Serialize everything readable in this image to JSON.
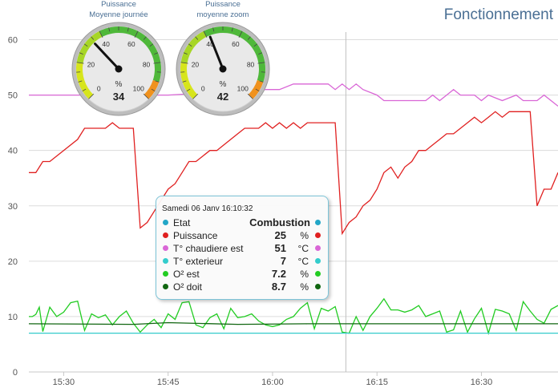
{
  "page_title": "Fonctionnement",
  "gauges": [
    {
      "title_line1": "Puissance",
      "title_line2": "Moyenne journée",
      "value": 34,
      "unit": "%",
      "min": 0,
      "max": 100,
      "ticks": [
        "0",
        "20",
        "40",
        "60",
        "80",
        "100"
      ]
    },
    {
      "title_line1": "Puissance",
      "title_line2": "moyenne zoom",
      "value": 42,
      "unit": "%",
      "min": 0,
      "max": 100,
      "ticks": [
        "0",
        "20",
        "40",
        "60",
        "80",
        "100"
      ]
    }
  ],
  "tooltip": {
    "timestamp": "Samedi 06 Janv 16:10:32",
    "rows": [
      {
        "label": "Etat",
        "value": "Combustion",
        "unit": "",
        "color": "#22a6c7"
      },
      {
        "label": "Puissance",
        "value": "25",
        "unit": "%",
        "color": "#e02020"
      },
      {
        "label": "T° chaudiere est",
        "value": "51",
        "unit": "°C",
        "color": "#d966d6"
      },
      {
        "label": "T° exterieur",
        "value": "7",
        "unit": "°C",
        "color": "#33cccc"
      },
      {
        "label": "O² est",
        "value": "7.2",
        "unit": "%",
        "color": "#22cc22"
      },
      {
        "label": "O² doit",
        "value": "8.7",
        "unit": "%",
        "color": "#116611"
      }
    ]
  },
  "chart_data": {
    "type": "line",
    "x_unit": "minutes",
    "x_range": [
      "15:25",
      "16:41"
    ],
    "xticks": [
      {
        "t": "15:30",
        "label": "15:30"
      },
      {
        "t": "15:45",
        "label": "15:45"
      },
      {
        "t": "16:00",
        "label": "16:00"
      },
      {
        "t": "16:15",
        "label": "16:15"
      },
      {
        "t": "16:30",
        "label": "16:30"
      }
    ],
    "ylim": [
      0,
      60
    ],
    "yticks": [
      0,
      10,
      20,
      30,
      40,
      50,
      60
    ],
    "crosshair_time": "16:10:32",
    "series": [
      {
        "key": "chaudiere",
        "color": "#d966d6",
        "points": [
          [
            "15:25",
            50
          ],
          [
            "15:40",
            50
          ],
          [
            "15:45",
            50
          ],
          [
            "15:52",
            50.5
          ],
          [
            "15:56",
            51
          ],
          [
            "15:59",
            51
          ],
          [
            "16:01",
            51
          ],
          [
            "16:03",
            52
          ],
          [
            "16:08",
            52
          ],
          [
            "16:09",
            51
          ],
          [
            "16:10",
            52
          ],
          [
            "16:11",
            51
          ],
          [
            "16:12",
            52
          ],
          [
            "16:13",
            51
          ],
          [
            "16:15",
            50
          ],
          [
            "16:16",
            49
          ],
          [
            "16:22",
            49
          ],
          [
            "16:23",
            50
          ],
          [
            "16:24",
            49
          ],
          [
            "16:25",
            50
          ],
          [
            "16:26",
            51
          ],
          [
            "16:27",
            50
          ],
          [
            "16:29",
            50
          ],
          [
            "16:30",
            49
          ],
          [
            "16:31",
            50
          ],
          [
            "16:33",
            49
          ],
          [
            "16:35",
            50
          ],
          [
            "16:36",
            49
          ],
          [
            "16:38",
            49
          ],
          [
            "16:39",
            50
          ],
          [
            "16:40",
            49
          ],
          [
            "16:41",
            48
          ]
        ]
      },
      {
        "key": "puissance",
        "color": "#e02020",
        "points": [
          [
            "15:25",
            36
          ],
          [
            "15:26",
            36
          ],
          [
            "15:27",
            38
          ],
          [
            "15:28",
            38
          ],
          [
            "15:30",
            40
          ],
          [
            "15:32",
            42
          ],
          [
            "15:33",
            44
          ],
          [
            "15:35",
            44
          ],
          [
            "15:36",
            44
          ],
          [
            "15:37",
            45
          ],
          [
            "15:38",
            44
          ],
          [
            "15:40",
            44
          ],
          [
            "15:41",
            26
          ],
          [
            "15:42",
            27
          ],
          [
            "15:43",
            29
          ],
          [
            "15:44",
            31
          ],
          [
            "15:45",
            33
          ],
          [
            "15:46",
            34
          ],
          [
            "15:47",
            36
          ],
          [
            "15:48",
            38
          ],
          [
            "15:49",
            38
          ],
          [
            "15:50",
            39
          ],
          [
            "15:51",
            40
          ],
          [
            "15:52",
            40
          ],
          [
            "15:53",
            41
          ],
          [
            "15:55",
            43
          ],
          [
            "15:56",
            44
          ],
          [
            "15:57",
            44
          ],
          [
            "15:58",
            44
          ],
          [
            "15:59",
            45
          ],
          [
            "16:00",
            44
          ],
          [
            "16:01",
            45
          ],
          [
            "16:02",
            44
          ],
          [
            "16:03",
            45
          ],
          [
            "16:04",
            44
          ],
          [
            "16:05",
            45
          ],
          [
            "16:06",
            45
          ],
          [
            "16:07",
            45
          ],
          [
            "16:08",
            45
          ],
          [
            "16:09",
            45
          ],
          [
            "16:10",
            25
          ],
          [
            "16:11",
            27
          ],
          [
            "16:12",
            28
          ],
          [
            "16:13",
            30
          ],
          [
            "16:14",
            31
          ],
          [
            "16:15",
            33
          ],
          [
            "16:16",
            36
          ],
          [
            "16:17",
            37
          ],
          [
            "16:18",
            35
          ],
          [
            "16:19",
            37
          ],
          [
            "16:20",
            38
          ],
          [
            "16:21",
            40
          ],
          [
            "16:22",
            40
          ],
          [
            "16:23",
            41
          ],
          [
            "16:24",
            42
          ],
          [
            "16:25",
            43
          ],
          [
            "16:26",
            43
          ],
          [
            "16:27",
            44
          ],
          [
            "16:28",
            45
          ],
          [
            "16:29",
            46
          ],
          [
            "16:30",
            45
          ],
          [
            "16:31",
            46
          ],
          [
            "16:32",
            47
          ],
          [
            "16:33",
            46
          ],
          [
            "16:34",
            47
          ],
          [
            "16:35",
            47
          ],
          [
            "16:36",
            47
          ],
          [
            "16:37",
            47
          ],
          [
            "16:38",
            30
          ],
          [
            "16:39",
            33
          ],
          [
            "16:40",
            33
          ],
          [
            "16:41",
            36
          ]
        ]
      },
      {
        "key": "o2_est",
        "color": "#22cc22",
        "points": [
          [
            "15:25",
            10
          ],
          [
            "15:25.5",
            10
          ],
          [
            "15:26",
            10.4
          ],
          [
            "15:26.5",
            11.7
          ],
          [
            "15:27",
            7.3
          ],
          [
            "15:28",
            11.7
          ],
          [
            "15:29",
            10
          ],
          [
            "15:30",
            10.8
          ],
          [
            "15:31",
            12.5
          ],
          [
            "15:32",
            12.8
          ],
          [
            "15:33",
            7.5
          ],
          [
            "15:34",
            10.5
          ],
          [
            "15:35",
            9.8
          ],
          [
            "15:36",
            10.3
          ],
          [
            "15:37",
            8.5
          ],
          [
            "15:38",
            10
          ],
          [
            "15:39",
            11
          ],
          [
            "15:40",
            8.8
          ],
          [
            "15:41",
            7.2
          ],
          [
            "15:42",
            8.5
          ],
          [
            "15:43",
            9.5
          ],
          [
            "15:44",
            8.0
          ],
          [
            "15:45",
            10.5
          ],
          [
            "15:46",
            9.5
          ],
          [
            "15:47",
            12.5
          ],
          [
            "15:48",
            12.7
          ],
          [
            "15:49",
            8.5
          ],
          [
            "15:50",
            8
          ],
          [
            "15:51",
            9.8
          ],
          [
            "15:52",
            10.5
          ],
          [
            "15:53",
            7.8
          ],
          [
            "15:54",
            11.5
          ],
          [
            "15:55",
            9.8
          ],
          [
            "15:56",
            10
          ],
          [
            "15:57",
            10.5
          ],
          [
            "15:58",
            9.2
          ],
          [
            "15:59",
            8.5
          ],
          [
            "16:00",
            8.2
          ],
          [
            "16:01",
            8.5
          ],
          [
            "16:02",
            9.5
          ],
          [
            "16:03",
            10
          ],
          [
            "16:04",
            11.5
          ],
          [
            "16:05",
            12.5
          ],
          [
            "16:06",
            7.8
          ],
          [
            "16:07",
            11.5
          ],
          [
            "16:08",
            11
          ],
          [
            "16:09",
            11.8
          ],
          [
            "16:10",
            7.2
          ],
          [
            "16:11",
            7
          ],
          [
            "16:12",
            10
          ],
          [
            "16:13",
            7.5
          ],
          [
            "16:14",
            10
          ],
          [
            "16:15",
            11.5
          ],
          [
            "16:16",
            13.2
          ],
          [
            "16:17",
            11.2
          ],
          [
            "16:18",
            11.2
          ],
          [
            "16:19",
            10.8
          ],
          [
            "16:20",
            11.2
          ],
          [
            "16:21",
            12
          ],
          [
            "16:22",
            10
          ],
          [
            "16:23",
            10.5
          ],
          [
            "16:24",
            11
          ],
          [
            "16:25",
            7.2
          ],
          [
            "16:26",
            7.6
          ],
          [
            "16:27",
            11
          ],
          [
            "16:28",
            7.2
          ],
          [
            "16:29",
            9.6
          ],
          [
            "16:30",
            11.5
          ],
          [
            "16:31",
            7
          ],
          [
            "16:32",
            11.3
          ],
          [
            "16:33",
            11
          ],
          [
            "16:34",
            10.5
          ],
          [
            "16:35",
            7.5
          ],
          [
            "16:36",
            12.7
          ],
          [
            "16:37",
            11
          ],
          [
            "16:38",
            9.5
          ],
          [
            "16:39",
            8.8
          ],
          [
            "16:40",
            11.3
          ],
          [
            "16:41",
            12
          ]
        ]
      },
      {
        "key": "o2_doit",
        "color": "#116611",
        "points": [
          [
            "15:25",
            8.7
          ],
          [
            "15:40",
            8.6
          ],
          [
            "15:45",
            8.9
          ],
          [
            "15:55",
            8.6
          ],
          [
            "16:05",
            8.7
          ],
          [
            "16:10",
            8.7
          ],
          [
            "16:20",
            8.7
          ],
          [
            "16:30",
            8.7
          ],
          [
            "16:41",
            8.7
          ]
        ]
      },
      {
        "key": "exterieur",
        "color": "#33cccc",
        "points": [
          [
            "15:25",
            7
          ],
          [
            "16:41",
            7
          ]
        ]
      }
    ]
  }
}
